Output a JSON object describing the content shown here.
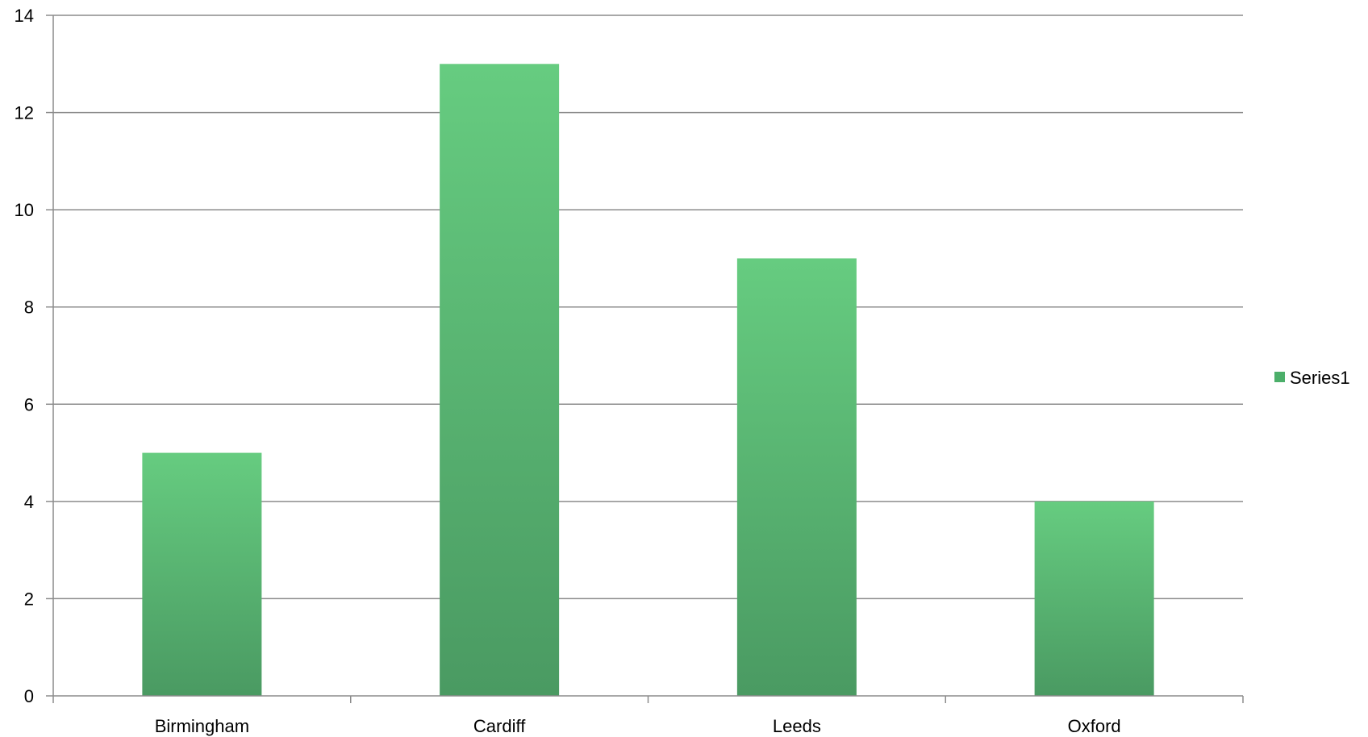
{
  "chart_data": {
    "type": "bar",
    "categories": [
      "Birmingham",
      "Cardiff",
      "Leeds",
      "Oxford"
    ],
    "series": [
      {
        "name": "Series1",
        "values": [
          5,
          13,
          9,
          4
        ]
      }
    ],
    "title": "",
    "xlabel": "",
    "ylabel": "",
    "ylim": [
      0,
      14
    ],
    "yticks": [
      0,
      2,
      4,
      6,
      8,
      10,
      12,
      14
    ],
    "ytick_labels": [
      "0",
      "2",
      "4",
      "6",
      "8",
      "10",
      "12",
      "14"
    ],
    "grid": true,
    "legend_position": "right",
    "colors": {
      "bar_top": "#66cc80",
      "bar_bottom": "#4a9a62",
      "legend_swatch": "#4caf6a",
      "gridline": "#8c8c8c",
      "axis": "#8c8c8c"
    }
  }
}
